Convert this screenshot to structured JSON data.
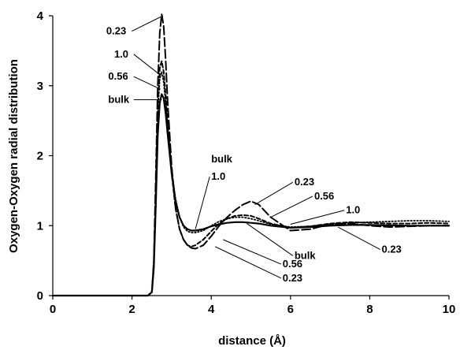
{
  "chart_data": {
    "type": "line",
    "title": "",
    "xlabel": "distance (Å)",
    "ylabel": "Oxygen-Oxygen radial distribution",
    "xlim": [
      0,
      10
    ],
    "ylim": [
      0,
      4
    ],
    "xticks": [
      "0",
      "2",
      "4",
      "6",
      "8",
      "10"
    ],
    "yticks": [
      "0",
      "1",
      "2",
      "3",
      "4"
    ],
    "grid": false,
    "legend": "none",
    "series": [
      {
        "name": "bulk",
        "style": "solid",
        "x": [
          0,
          2.4,
          2.5,
          2.55,
          2.6,
          2.65,
          2.7,
          2.75,
          2.8,
          2.85,
          2.9,
          3.0,
          3.1,
          3.2,
          3.3,
          3.4,
          3.5,
          3.6,
          3.8,
          4.0,
          4.2,
          4.4,
          4.6,
          4.8,
          5.0,
          5.2,
          5.5,
          6.0,
          6.5,
          7.0,
          7.5,
          8.0,
          9.0,
          10.0
        ],
        "y": [
          0,
          0,
          0.05,
          0.4,
          1.3,
          2.3,
          2.75,
          2.88,
          2.82,
          2.6,
          2.3,
          1.75,
          1.35,
          1.12,
          1.0,
          0.95,
          0.93,
          0.93,
          0.95,
          0.99,
          1.02,
          1.04,
          1.05,
          1.05,
          1.04,
          1.03,
          1.0,
          0.97,
          0.98,
          1.0,
          1.01,
          1.01,
          1.0,
          1.0
        ]
      },
      {
        "name": "1.0",
        "style": "dotted",
        "x": [
          0,
          2.4,
          2.5,
          2.55,
          2.6,
          2.65,
          2.7,
          2.75,
          2.8,
          2.85,
          2.9,
          3.0,
          3.1,
          3.2,
          3.3,
          3.4,
          3.5,
          3.6,
          3.8,
          4.0,
          4.2,
          4.4,
          4.6,
          4.8,
          5.0,
          5.2,
          5.5,
          6.0,
          6.5,
          7.0,
          7.5,
          8.0,
          8.5,
          9.0,
          9.5,
          10.0
        ],
        "y": [
          0,
          0,
          0.05,
          0.45,
          1.5,
          2.6,
          3.1,
          3.2,
          3.05,
          2.75,
          2.4,
          1.8,
          1.38,
          1.12,
          0.98,
          0.92,
          0.9,
          0.9,
          0.93,
          1.0,
          1.06,
          1.1,
          1.12,
          1.12,
          1.1,
          1.07,
          1.02,
          0.98,
          0.99,
          1.02,
          1.04,
          1.05,
          1.06,
          1.07,
          1.07,
          1.06
        ]
      },
      {
        "name": "0.56",
        "style": "dashed",
        "x": [
          0,
          2.4,
          2.5,
          2.55,
          2.6,
          2.65,
          2.7,
          2.75,
          2.8,
          2.85,
          2.9,
          3.0,
          3.1,
          3.2,
          3.3,
          3.4,
          3.5,
          3.6,
          3.8,
          4.0,
          4.2,
          4.4,
          4.6,
          4.8,
          5.0,
          5.2,
          5.5,
          6.0,
          6.5,
          7.0,
          7.5,
          8.0,
          8.5,
          9.0,
          9.5,
          10.0
        ],
        "y": [
          0,
          0,
          0.05,
          0.45,
          1.5,
          2.65,
          3.25,
          3.35,
          3.2,
          2.85,
          2.45,
          1.75,
          1.25,
          0.95,
          0.8,
          0.72,
          0.7,
          0.72,
          0.8,
          0.92,
          1.03,
          1.1,
          1.14,
          1.15,
          1.14,
          1.1,
          1.03,
          0.97,
          0.99,
          1.03,
          1.05,
          1.04,
          1.03,
          1.03,
          1.04,
          1.03
        ]
      },
      {
        "name": "0.23",
        "style": "long-dash",
        "x": [
          0,
          2.4,
          2.5,
          2.55,
          2.6,
          2.65,
          2.7,
          2.75,
          2.8,
          2.85,
          2.9,
          3.0,
          3.1,
          3.2,
          3.3,
          3.4,
          3.5,
          3.6,
          3.8,
          4.0,
          4.2,
          4.4,
          4.6,
          4.8,
          5.0,
          5.2,
          5.5,
          6.0,
          6.5,
          7.0,
          7.5,
          8.0,
          8.5,
          9.0,
          9.5,
          10.0
        ],
        "y": [
          0,
          0,
          0.05,
          0.5,
          1.7,
          3.0,
          3.75,
          4.02,
          3.85,
          3.35,
          2.75,
          1.85,
          1.25,
          0.95,
          0.8,
          0.72,
          0.68,
          0.67,
          0.72,
          0.85,
          1.0,
          1.12,
          1.22,
          1.3,
          1.35,
          1.3,
          1.12,
          0.93,
          0.95,
          1.02,
          1.03,
          1.0,
          0.98,
          0.99,
          1.0,
          1.0
        ]
      }
    ],
    "annotations": [
      {
        "text": "0.23",
        "label_x": 1.35,
        "label_y": 3.78,
        "point_x": 2.78,
        "point_y": 4.0
      },
      {
        "text": "1.0",
        "label_x": 1.55,
        "label_y": 3.45,
        "point_x": 2.72,
        "point_y": 3.15
      },
      {
        "text": "0.56",
        "label_x": 1.4,
        "label_y": 3.13,
        "point_x": 2.72,
        "point_y": 2.95
      },
      {
        "text": "bulk",
        "label_x": 1.4,
        "label_y": 2.8,
        "point_x": 2.75,
        "point_y": 2.8
      },
      {
        "text": "bulk",
        "label_x": 4.0,
        "label_y": 1.95,
        "point_x": null,
        "point_y": null
      },
      {
        "text": "1.0",
        "label_x": 4.0,
        "label_y": 1.7,
        "point_x": 3.6,
        "point_y": 0.95
      },
      {
        "text": "0.23",
        "label_x": 6.1,
        "label_y": 1.62,
        "point_x": 5.1,
        "point_y": 1.3
      },
      {
        "text": "0.56",
        "label_x": 6.6,
        "label_y": 1.42,
        "point_x": 5.5,
        "point_y": 1.12
      },
      {
        "text": "1.0",
        "label_x": 7.4,
        "label_y": 1.22,
        "point_x": 6.0,
        "point_y": 1.02
      },
      {
        "text": "bulk",
        "label_x": 6.1,
        "label_y": 0.57,
        "point_x": 4.9,
        "point_y": 1.03
      },
      {
        "text": "0.23",
        "label_x": 8.3,
        "label_y": 0.66,
        "point_x": 7.2,
        "point_y": 0.98
      },
      {
        "text": "0.56",
        "label_x": 5.8,
        "label_y": 0.45,
        "point_x": 4.3,
        "point_y": 0.8
      },
      {
        "text": "0.23",
        "label_x": 5.8,
        "label_y": 0.25,
        "point_x": 4.1,
        "point_y": 0.7
      }
    ]
  }
}
